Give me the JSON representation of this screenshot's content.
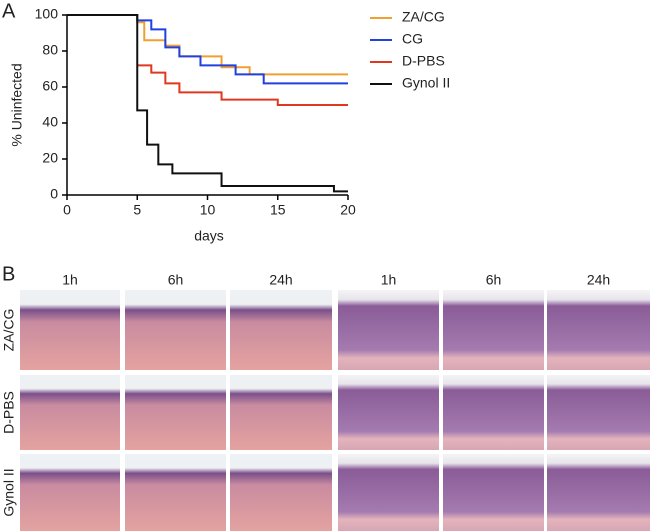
{
  "panel_labels": [
    "A",
    "B"
  ],
  "chart_data": {
    "type": "line",
    "drawstyle": "steps-post",
    "x_label": "days",
    "y_label": "% Uninfected",
    "xlim": [
      0,
      20
    ],
    "xticks": [
      0,
      5,
      10,
      15,
      20
    ],
    "ylim": [
      0,
      100
    ],
    "yticks": [
      0,
      20,
      40,
      60,
      80,
      100
    ],
    "legend": "upper right",
    "series": [
      {
        "name": "ZA/CG",
        "color": "#f0a030",
        "x": [
          0,
          5,
          5.5,
          7,
          8,
          11,
          13,
          20
        ],
        "values": [
          100,
          96,
          86,
          83,
          77,
          71,
          67,
          67
        ]
      },
      {
        "name": "CG",
        "color": "#2040e0",
        "x": [
          0,
          5,
          6,
          7,
          8,
          9.5,
          12,
          14,
          20
        ],
        "values": [
          100,
          97,
          92,
          82,
          77,
          72,
          67,
          62,
          62
        ]
      },
      {
        "name": "D-PBS",
        "color": "#e03820",
        "x": [
          5,
          6,
          7,
          8,
          11,
          15,
          20
        ],
        "values": [
          72,
          68,
          62,
          57,
          53,
          50,
          50
        ]
      },
      {
        "name": "Gynol II",
        "color": "#101010",
        "x": [
          0,
          5,
          5.7,
          6.5,
          7.5,
          11,
          19,
          20
        ],
        "values": [
          100,
          47,
          28,
          17,
          12,
          5,
          2,
          2
        ]
      }
    ]
  },
  "histology": {
    "column_headers": [
      "1h",
      "6h",
      "24h",
      "1h",
      "6h",
      "24h"
    ],
    "row_labels": [
      "ZA/CG",
      "D-PBS",
      "Gynol II"
    ]
  }
}
